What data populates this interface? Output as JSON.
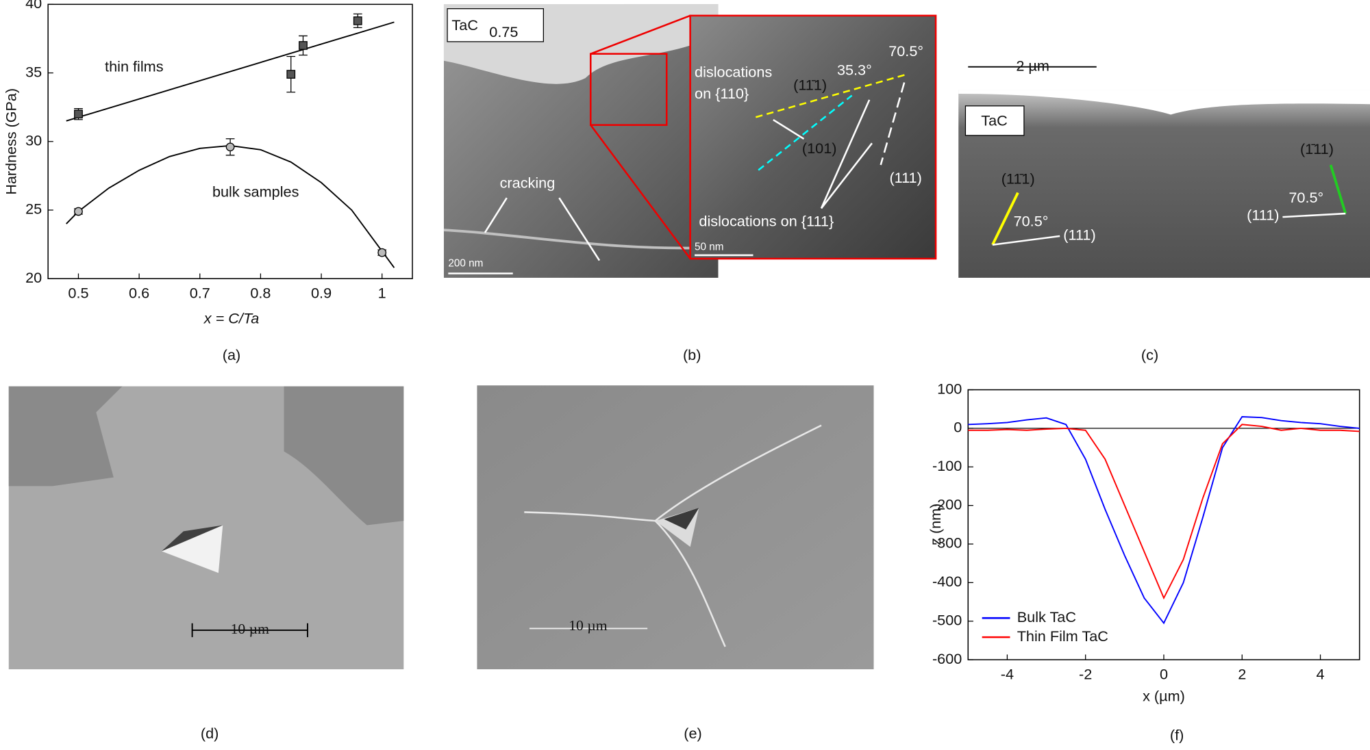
{
  "chart_data": [
    {
      "type": "scatter",
      "x_label": "x = C/Ta",
      "y_label": "Hardness (GPa)",
      "label": "(a)",
      "xlim": [
        0.45,
        1.05
      ],
      "xticks": [
        0.5,
        0.6,
        0.7,
        0.8,
        0.9,
        1
      ],
      "ylim": [
        20,
        40
      ],
      "yticks": [
        20,
        25,
        30,
        35,
        40
      ],
      "series": [
        {
          "name": "thin films",
          "color": "#555555",
          "marker": "square",
          "x": [
            0.5,
            0.85,
            0.87,
            0.96
          ],
          "values": [
            32.0,
            34.9,
            37.0,
            38.8
          ],
          "errors": [
            0.4,
            1.3,
            0.7,
            0.5
          ],
          "fit": {
            "x": [
              0.48,
              1.02
            ],
            "values": [
              31.5,
              38.7
            ]
          }
        },
        {
          "name": "bulk samples",
          "color": "#bbbbbb",
          "marker": "circle",
          "x": [
            0.5,
            0.75,
            1.0
          ],
          "values": [
            24.9,
            29.6,
            21.9
          ],
          "errors": [
            0.2,
            0.6,
            0.2
          ],
          "fit": {
            "x": [
              0.48,
              0.5,
              0.55,
              0.6,
              0.65,
              0.7,
              0.75,
              0.8,
              0.85,
              0.9,
              0.95,
              1.0,
              1.02
            ],
            "values": [
              24.0,
              24.9,
              26.6,
              27.9,
              28.9,
              29.5,
              29.7,
              29.4,
              28.5,
              27.0,
              25.0,
              22.0,
              20.8
            ]
          }
        }
      ]
    },
    {
      "type": "line",
      "x_label": "x (µm)",
      "y_label": "z (nm)",
      "label": "(f)",
      "xlim": [
        -5,
        5
      ],
      "xticks": [
        -4,
        -2,
        0,
        2,
        4
      ],
      "ylim": [
        -600,
        100
      ],
      "yticks": [
        -600,
        -500,
        -400,
        -300,
        -200,
        -100,
        0,
        100
      ],
      "hline": 0,
      "legend": "lower left",
      "x": [
        -5,
        -4.5,
        -4,
        -3.5,
        -3,
        -2.5,
        -2,
        -1.5,
        -1,
        -0.5,
        0,
        0.5,
        1,
        1.5,
        2,
        2.5,
        3,
        3.5,
        4,
        4.5,
        5
      ],
      "series": [
        {
          "name": "Bulk TaC",
          "color": "#0000ff",
          "values": [
            10,
            12,
            15,
            22,
            27,
            10,
            -80,
            -210,
            -330,
            -440,
            -505,
            -400,
            -230,
            -50,
            30,
            28,
            20,
            15,
            12,
            5,
            0
          ]
        },
        {
          "name": "Thin Film TaC",
          "color": "#ff0000",
          "values": [
            -5,
            -5,
            -3,
            -5,
            -2,
            0,
            -5,
            -80,
            -200,
            -320,
            -440,
            -340,
            -180,
            -40,
            10,
            5,
            -5,
            0,
            -5,
            -5,
            -8
          ]
        }
      ]
    }
  ],
  "panels": {
    "b": {
      "label": "(b)",
      "sample": "TaC",
      "sample_sub": "0.75",
      "cracking": "cracking",
      "scale_main": "200 nm",
      "scale_inset": "50 nm",
      "disl110_1": "dislocations",
      "disl110_2": "on {110}",
      "plane_yellow": "(11̄1)",
      "angle1": "35.3°",
      "angle2": "70.5°",
      "plane_cyan": "(101)",
      "plane_white": "(111)",
      "disl111": "dislocations on {111}"
    },
    "c": {
      "label": "(c)",
      "scale": "2 µm",
      "sample": "TaC",
      "plane_yellow": "(11̄1)",
      "plane_green": "(1̄11)",
      "angle_left": "70.5°",
      "angle_right": "70.5°",
      "plane_left": "(111)",
      "plane_right": "(111)"
    },
    "d": {
      "label": "(d)",
      "scale": "10 µm"
    },
    "e": {
      "label": "(e)",
      "scale": "10 µm"
    }
  }
}
